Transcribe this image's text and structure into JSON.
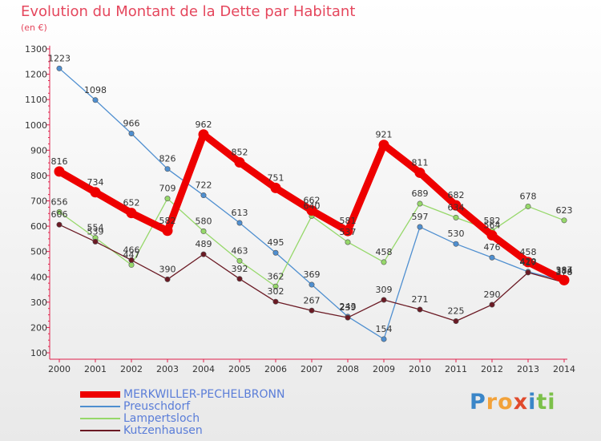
{
  "chart_data": {
    "type": "line",
    "title": "Evolution du Montant de la Dette par Habitant",
    "subtitle": "(en €)",
    "x": [
      "2000",
      "2001",
      "2002",
      "2003",
      "2004",
      "2005",
      "2006",
      "2007",
      "2008",
      "2009",
      "2010",
      "2011",
      "2012",
      "2013",
      "2014"
    ],
    "ylim": [
      100,
      1300
    ],
    "yticks": [
      100,
      200,
      300,
      400,
      500,
      600,
      700,
      800,
      900,
      1000,
      1100,
      1200,
      1300
    ],
    "grid": false,
    "legend": "bottom-left",
    "series": [
      {
        "name": "MERKWILLER-PECHELBRONN",
        "color": "#ee0000",
        "emphasis": true,
        "values": [
          816,
          734,
          652,
          582,
          962,
          852,
          751,
          662,
          581,
          921,
          811,
          682,
          564,
          458,
          387
        ]
      },
      {
        "name": "Preuschdorf",
        "color": "#4f8fd0",
        "values": [
          1223,
          1098,
          966,
          826,
          722,
          613,
          495,
          369,
          243,
          154,
          597,
          530,
          476,
          420,
          384
        ]
      },
      {
        "name": "Lampertsloch",
        "color": "#96d86a",
        "values": [
          656,
          554,
          447,
          709,
          580,
          463,
          362,
          640,
          537,
          458,
          689,
          634,
          582,
          678,
          623
        ]
      },
      {
        "name": "Kutzenhausen",
        "color": "#6b1a24",
        "values": [
          606,
          539,
          466,
          390,
          489,
          392,
          302,
          267,
          239,
          309,
          271,
          225,
          290,
          417,
          378
        ]
      }
    ]
  },
  "brand": {
    "letters": [
      {
        "ch": "P",
        "color": "#3a86c8"
      },
      {
        "ch": "r",
        "color": "#f2a23a"
      },
      {
        "ch": "o",
        "color": "#f2a23a"
      },
      {
        "ch": "x",
        "color": "#e04a2c"
      },
      {
        "ch": "i",
        "color": "#3a86c8"
      },
      {
        "ch": "t",
        "color": "#7cc04a"
      },
      {
        "ch": "i",
        "color": "#7cc04a"
      }
    ]
  }
}
